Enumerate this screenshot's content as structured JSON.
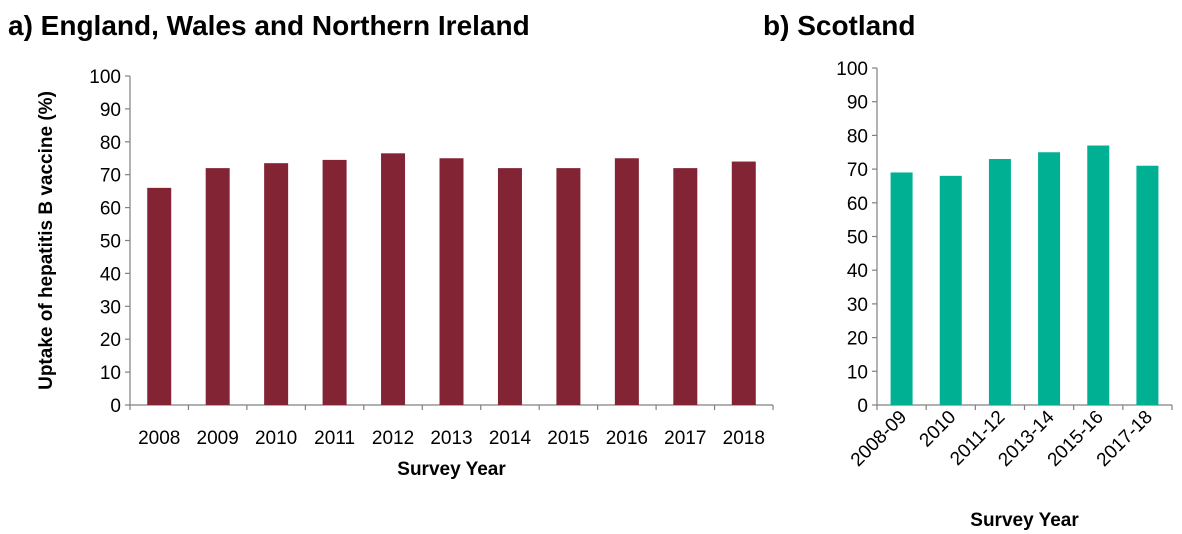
{
  "chart_data": [
    {
      "type": "bar",
      "title": "a) England, Wales and Northern Ireland",
      "xlabel": "Survey Year",
      "ylabel": "Uptake of hepatitis B vaccine (%)",
      "ylim": [
        0,
        100
      ],
      "yticks": [
        0,
        10,
        20,
        30,
        40,
        50,
        60,
        70,
        80,
        90,
        100
      ],
      "grid": false,
      "color": "#822433",
      "categories": [
        "2008",
        "2009",
        "2010",
        "2011",
        "2012",
        "2013",
        "2014",
        "2015",
        "2016",
        "2017",
        "2018"
      ],
      "values": [
        66,
        72,
        73.5,
        74.5,
        76.5,
        75,
        72,
        72,
        75,
        72,
        74
      ]
    },
    {
      "type": "bar",
      "title": "b) Scotland",
      "xlabel": "Survey Year",
      "ylabel": "",
      "ylim": [
        0,
        100
      ],
      "yticks": [
        0,
        10,
        20,
        30,
        40,
        50,
        60,
        70,
        80,
        90,
        100
      ],
      "grid": false,
      "color": "#00B092",
      "categories": [
        "2008-09",
        "2010",
        "2011-12",
        "2013-14",
        "2015-16",
        "2017-18"
      ],
      "values": [
        69,
        68,
        73,
        75,
        77,
        71
      ]
    }
  ]
}
